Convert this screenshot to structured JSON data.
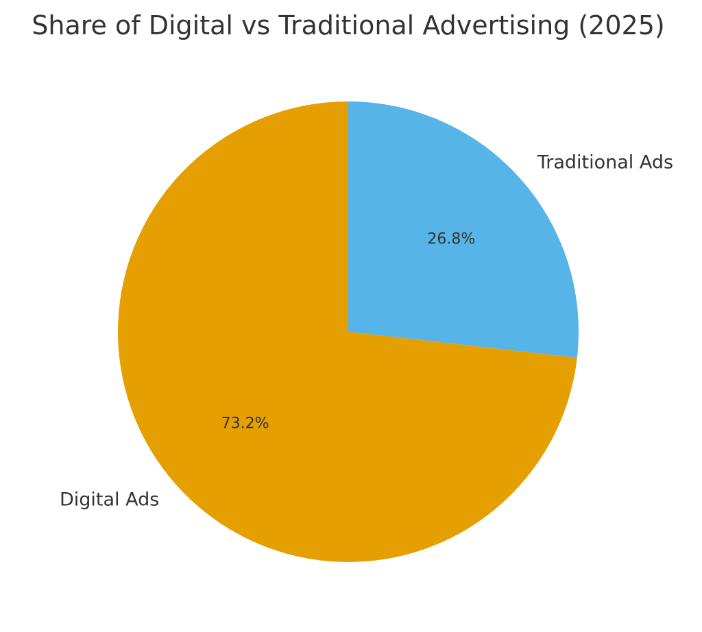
{
  "chart_data": {
    "type": "pie",
    "title": "Share of Digital vs Traditional Advertising (2025)",
    "categories": [
      "Traditional Ads",
      "Digital Ads"
    ],
    "values": [
      26.8,
      73.2
    ],
    "percent_labels": [
      "26.8%",
      "73.2%"
    ],
    "colors": [
      "#56B4E9",
      "#E69F00"
    ],
    "start_angle_deg": 90,
    "direction": "clockwise",
    "legend": "none"
  }
}
